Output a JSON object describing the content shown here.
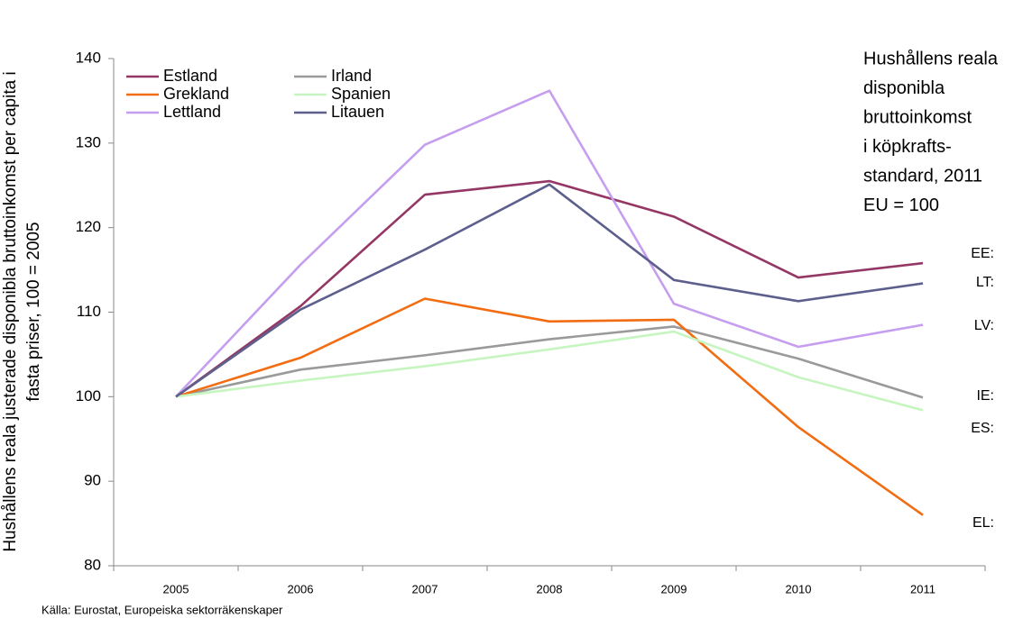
{
  "chart_data": {
    "type": "line",
    "y_label_lines": [
      "Hushållens reala justerade disponibla bruttoinkomst per capita i",
      "fasta priser, 100 = 2005"
    ],
    "note_lines": [
      "Hushållens reala",
      "disponibla",
      "bruttoinkomst",
      "i köpkrafts-",
      "standard, 2011",
      "EU = 100"
    ],
    "end_labels": [
      "EE:",
      "LT:",
      "LV:",
      "IE:",
      "ES:",
      "EL:"
    ],
    "source": "Källa: Eurostat, Europeiska sektorräkenskaper",
    "categories": [
      "2005",
      "2006",
      "2007",
      "2008",
      "2009",
      "2010",
      "2011"
    ],
    "series": [
      {
        "name": "Estland",
        "color": "#953764",
        "values": [
          100,
          110.7,
          123.9,
          125.5,
          121.3,
          114.1,
          115.8
        ]
      },
      {
        "name": "Irland",
        "color": "#9a9a9a",
        "values": [
          100,
          103.2,
          104.9,
          106.8,
          108.3,
          104.5,
          99.9
        ]
      },
      {
        "name": "Grekland",
        "color": "#f26c12",
        "values": [
          100,
          104.6,
          111.6,
          108.9,
          109.1,
          96.4,
          86.0
        ]
      },
      {
        "name": "Spanien",
        "color": "#c6f5c0",
        "values": [
          100,
          101.9,
          103.6,
          105.6,
          107.7,
          102.3,
          98.4
        ]
      },
      {
        "name": "Lettland",
        "color": "#c59ef0",
        "values": [
          100,
          115.6,
          129.8,
          136.2,
          111.0,
          105.9,
          108.5
        ]
      },
      {
        "name": "Litauen",
        "color": "#5d5f8d",
        "values": [
          100,
          110.3,
          117.4,
          125.1,
          113.8,
          111.3,
          113.4
        ]
      }
    ],
    "ylim": [
      80,
      140
    ],
    "yticks": [
      80,
      90,
      100,
      110,
      120,
      130,
      140
    ],
    "grid": false,
    "legend": "upper left"
  }
}
